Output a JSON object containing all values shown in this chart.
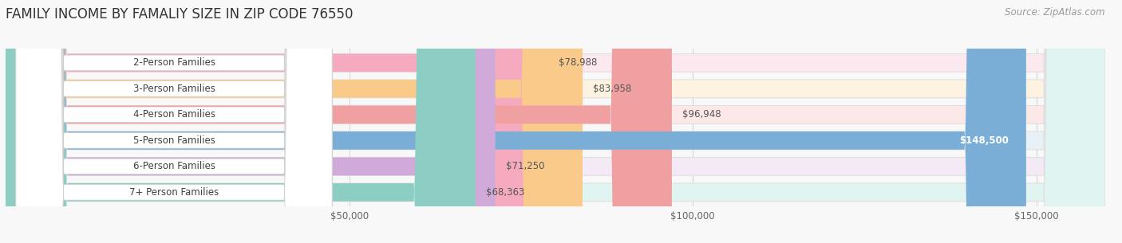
{
  "title": "FAMILY INCOME BY FAMALIY SIZE IN ZIP CODE 76550",
  "source": "Source: ZipAtlas.com",
  "categories": [
    "2-Person Families",
    "3-Person Families",
    "4-Person Families",
    "5-Person Families",
    "6-Person Families",
    "7+ Person Families"
  ],
  "values": [
    78988,
    83958,
    96948,
    148500,
    71250,
    68363
  ],
  "bar_colors": [
    "#f5aac0",
    "#f9ca8a",
    "#f0a0a0",
    "#7aaed6",
    "#d0aad8",
    "#8dcec4"
  ],
  "bar_bg_colors": [
    "#fce8ef",
    "#fef3e0",
    "#fde8e8",
    "#e8f0f8",
    "#f3eaf5",
    "#e0f5f2"
  ],
  "value_labels": [
    "$78,988",
    "$83,958",
    "$96,948",
    "$148,500",
    "$71,250",
    "$68,363"
  ],
  "label_inside_bar": [
    false,
    false,
    false,
    true,
    false,
    false
  ],
  "xlim_min": 0,
  "xlim_max": 160000,
  "xticks": [
    50000,
    100000,
    150000
  ],
  "xtick_labels": [
    "$50,000",
    "$100,000",
    "$150,000"
  ],
  "background_color": "#f8f8f8",
  "title_fontsize": 12,
  "label_fontsize": 8.5,
  "value_fontsize": 8.5,
  "source_fontsize": 8.5
}
